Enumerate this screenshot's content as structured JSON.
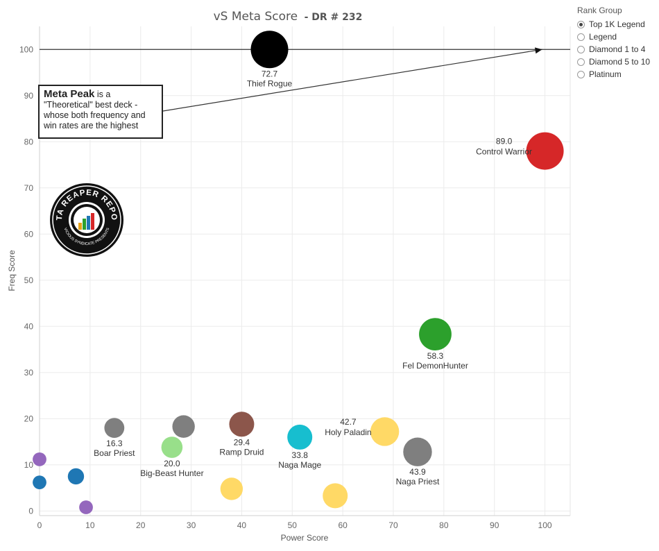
{
  "title": {
    "main": "vS Meta Score",
    "sub": "- DR # 232"
  },
  "legend": {
    "title": "Rank Group",
    "items": [
      {
        "label": "Top 1K Legend",
        "checked": true
      },
      {
        "label": "Legend",
        "checked": false
      },
      {
        "label": "Diamond 1 to 4",
        "checked": false
      },
      {
        "label": "Diamond 5 to 10",
        "checked": false
      },
      {
        "label": "Platinum",
        "checked": false
      }
    ]
  },
  "annotation": {
    "bold": "Meta Peak",
    "text": " is a \"Theoretical\" best deck - whose both frequency and win rates are the highest"
  },
  "logo": {
    "text_top": "DATA REAPER REPORT",
    "text_bottom": "VICIOUS SYNDICATE PRESENTS"
  },
  "chart_data": {
    "type": "scatter",
    "xlabel": "Power Score",
    "ylabel": "Freq Score",
    "xlim": [
      0,
      105
    ],
    "ylim": [
      -1,
      105
    ],
    "xticks": [
      0,
      10,
      20,
      30,
      40,
      50,
      60,
      70,
      80,
      90,
      100
    ],
    "yticks": [
      0,
      10,
      20,
      30,
      40,
      50,
      60,
      70,
      80,
      90,
      100
    ],
    "grid": true,
    "reference_line_y": 100,
    "points": [
      {
        "x": 45.5,
        "y": 100,
        "size": 3,
        "color": "#000000",
        "value": "72.7",
        "name": "Thief Rogue",
        "label_pos": "below"
      },
      {
        "x": 100,
        "y": 78,
        "size": 3,
        "color": "#d62728",
        "value": "89.0",
        "name": "Control Warrior",
        "label_pos": "left"
      },
      {
        "x": 78.3,
        "y": 38.3,
        "size": 2.6,
        "color": "#2ca02c",
        "value": "58.3",
        "name": "Fel DemonHunter",
        "label_pos": "below"
      },
      {
        "x": 74.8,
        "y": 12.8,
        "size": 2.3,
        "color": "#7f7f7f",
        "value": "43.9",
        "name": "Naga Priest",
        "label_pos": "below"
      },
      {
        "x": 68.3,
        "y": 17.2,
        "size": 2.3,
        "color": "#ffd966",
        "value": "42.7",
        "name": "Holy Paladin",
        "label_pos": "left"
      },
      {
        "x": 51.5,
        "y": 16,
        "size": 2,
        "color": "#17becf",
        "value": "33.8",
        "name": "Naga Mage",
        "label_pos": "below"
      },
      {
        "x": 40,
        "y": 18.8,
        "size": 2,
        "color": "#8c564b",
        "value": "29.4",
        "name": "Ramp Druid",
        "label_pos": "below"
      },
      {
        "x": 28.5,
        "y": 18.3,
        "size": 1.8,
        "color": "#7f7f7f",
        "value": "",
        "name": "",
        "label_pos": "none"
      },
      {
        "x": 26.2,
        "y": 13.8,
        "size": 1.7,
        "color": "#98df8a",
        "value": "20.0",
        "name": "Big-Beast Hunter",
        "label_pos": "below"
      },
      {
        "x": 14.8,
        "y": 18,
        "size": 1.6,
        "color": "#7f7f7f",
        "value": "16.3",
        "name": "Boar Priest",
        "label_pos": "below"
      },
      {
        "x": 58.5,
        "y": 3.3,
        "size": 2,
        "color": "#ffd966",
        "value": "",
        "name": "",
        "label_pos": "none"
      },
      {
        "x": 38,
        "y": 4.8,
        "size": 1.8,
        "color": "#ffd966",
        "value": "",
        "name": "",
        "label_pos": "none"
      },
      {
        "x": 7.2,
        "y": 7.5,
        "size": 1.3,
        "color": "#1f77b4",
        "value": "",
        "name": "",
        "label_pos": "none"
      },
      {
        "x": 9.2,
        "y": 0.8,
        "size": 1.1,
        "color": "#9467bd",
        "value": "",
        "name": "",
        "label_pos": "none"
      },
      {
        "x": 0,
        "y": 11.2,
        "size": 1.1,
        "color": "#9467bd",
        "value": "",
        "name": "",
        "label_pos": "none"
      },
      {
        "x": 0,
        "y": 6.2,
        "size": 1.1,
        "color": "#1f77b4",
        "value": "",
        "name": "",
        "label_pos": "none"
      }
    ]
  }
}
